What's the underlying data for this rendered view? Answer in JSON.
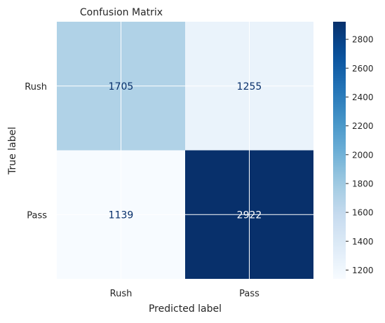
{
  "chart_data": {
    "type": "heatmap",
    "title": "Confusion Matrix",
    "xlabel": "Predicted label",
    "ylabel": "True label",
    "x_categories": [
      "Rush",
      "Pass"
    ],
    "y_categories": [
      "Rush",
      "Pass"
    ],
    "values": [
      [
        1705,
        1255
      ],
      [
        1139,
        2922
      ]
    ],
    "colormap": "Blues",
    "colorbar": {
      "range": [
        1139,
        2922
      ],
      "ticks": [
        1200,
        1400,
        1600,
        1800,
        2000,
        2200,
        2400,
        2600,
        2800
      ]
    },
    "grid": true
  },
  "colors": {
    "cell_text_light": "#ffffff",
    "cell_text_dark": "#08306b",
    "grid": "#ffffff",
    "label_text": "#262626"
  }
}
